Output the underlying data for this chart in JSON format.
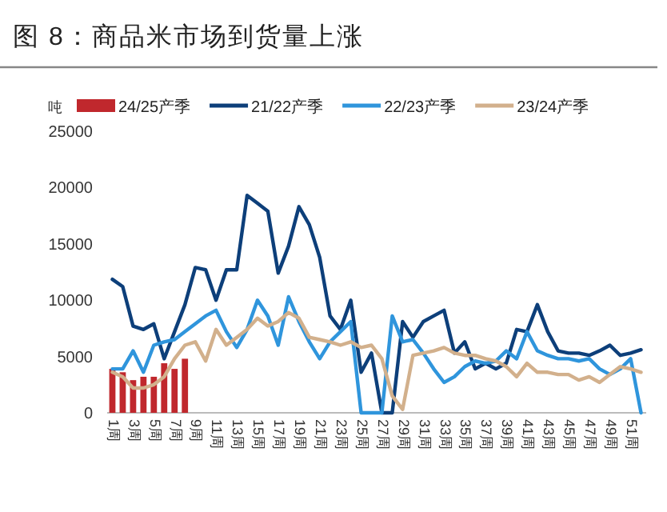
{
  "chart_data": {
    "type": "line",
    "title": "图 8：商品米市场到货量上涨",
    "ylabel": "吨",
    "categories": [
      "1周",
      null,
      "3周",
      null,
      "5周",
      null,
      "7周",
      null,
      "9周",
      null,
      "11周",
      null,
      "13周",
      null,
      "15周",
      null,
      "17周",
      null,
      "19周",
      null,
      "21周",
      null,
      "23周",
      null,
      "25周",
      null,
      "27周",
      null,
      "29周",
      null,
      "31周",
      null,
      "33周",
      null,
      "35周",
      null,
      "37周",
      null,
      "39周",
      null,
      "41周",
      null,
      "43周",
      null,
      "45周",
      null,
      "47周",
      null,
      "49周",
      null,
      "51周",
      null
    ],
    "ylim": [
      0,
      25000
    ],
    "yticks": [
      0,
      5000,
      10000,
      15000,
      20000,
      25000
    ],
    "grid": false,
    "legend": "top",
    "marker": "none",
    "line_style": "solid",
    "series": [
      {
        "name": "24/25产季",
        "type": "bar",
        "color": "#c0282d",
        "values": [
          3900,
          3600,
          2900,
          3200,
          3200,
          4400,
          3900,
          4800,
          null,
          null,
          null,
          null,
          null,
          null,
          null,
          null,
          null,
          null,
          null,
          null,
          null,
          null,
          null,
          null,
          null,
          null,
          null,
          null,
          null,
          null,
          null,
          null,
          null,
          null,
          null,
          null,
          null,
          null,
          null,
          null,
          null,
          null,
          null,
          null,
          null,
          null,
          null,
          null,
          null,
          null,
          null,
          null
        ]
      },
      {
        "name": "21/22产季",
        "color": "#0d3f7a",
        "values": [
          11850,
          11200,
          7700,
          7400,
          7900,
          4800,
          7200,
          9600,
          12900,
          12700,
          10000,
          12700,
          12700,
          19300,
          18600,
          17900,
          12400,
          14800,
          18300,
          16700,
          13800,
          8600,
          7400,
          10000,
          3600,
          5300,
          0,
          0,
          8100,
          6700,
          8100,
          8600,
          9100,
          5300,
          6300,
          3900,
          4400,
          3900,
          4400,
          7400,
          7200,
          9600,
          7200,
          5500,
          5300,
          5300,
          5100,
          5500,
          6000,
          5100,
          5300,
          5600
        ]
      },
      {
        "name": "22/23产季",
        "color": "#2f95dc",
        "values": [
          3900,
          3900,
          5500,
          3600,
          6000,
          6300,
          6500,
          7200,
          7900,
          8600,
          9100,
          7200,
          5800,
          7400,
          10000,
          8600,
          6000,
          10300,
          8100,
          6300,
          4800,
          6300,
          7200,
          8100,
          0,
          0,
          0,
          8600,
          6300,
          6500,
          5300,
          3900,
          2700,
          3200,
          4100,
          4600,
          4400,
          4600,
          5500,
          4800,
          7200,
          5500,
          5100,
          4800,
          4800,
          4600,
          4800,
          3900,
          3400,
          3900,
          4800,
          0
        ]
      },
      {
        "name": "23/24产季",
        "color": "#d2b08c",
        "values": [
          3600,
          3200,
          2200,
          2200,
          2500,
          3200,
          4800,
          6000,
          6300,
          4600,
          7400,
          6000,
          6700,
          7400,
          8400,
          7700,
          8100,
          8900,
          8400,
          6700,
          6500,
          6300,
          6000,
          6300,
          5800,
          6000,
          4800,
          1500,
          300,
          5100,
          5300,
          5500,
          5800,
          5300,
          5100,
          5100,
          4800,
          4600,
          4100,
          3200,
          4400,
          3600,
          3600,
          3400,
          3400,
          2900,
          3200,
          2700,
          3400,
          4100,
          3900,
          3600
        ]
      }
    ]
  }
}
